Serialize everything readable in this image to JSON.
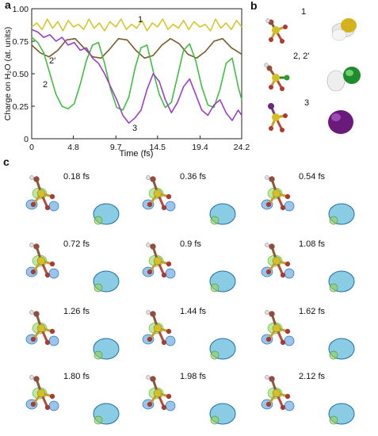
{
  "panels": {
    "a": "a",
    "b": "b",
    "c": "c"
  },
  "chart_data": {
    "type": "line",
    "title": "",
    "xlabel": "Time (fs)",
    "ylabel": "Charge on H₂O (at. units)",
    "xlim": [
      0,
      24.2
    ],
    "ylim": [
      0,
      1.0
    ],
    "xticks": [
      "0",
      "4.8",
      "9.7",
      "14.5",
      "19.4",
      "24.2"
    ],
    "xtick_values": [
      0,
      4.8,
      9.7,
      14.5,
      19.4,
      24.2
    ],
    "yticks": [
      "0",
      "0.25",
      "0.50",
      "0.75",
      "1.00"
    ],
    "ytick_values": [
      0,
      0.25,
      0.5,
      0.75,
      1.0
    ],
    "grid": false,
    "series": [
      {
        "name": "1",
        "color": "#d8c52e",
        "x": [
          0,
          0.6,
          1.2,
          1.8,
          2.4,
          3.0,
          3.6,
          4.2,
          4.8,
          5.4,
          6.0,
          6.6,
          7.2,
          7.8,
          8.4,
          9.0,
          9.7,
          10.3,
          10.9,
          11.5,
          12.1,
          12.7,
          13.3,
          13.9,
          14.5,
          15.1,
          15.7,
          16.3,
          16.9,
          17.5,
          18.1,
          18.7,
          19.4,
          20.0,
          20.6,
          21.2,
          21.8,
          22.4,
          23.0,
          23.6,
          24.2
        ],
        "values": [
          0.86,
          0.89,
          0.84,
          0.92,
          0.85,
          0.9,
          0.83,
          0.91,
          0.86,
          0.88,
          0.84,
          0.92,
          0.85,
          0.89,
          0.83,
          0.9,
          0.86,
          0.92,
          0.84,
          0.88,
          0.85,
          0.91,
          0.83,
          0.89,
          0.86,
          0.92,
          0.84,
          0.88,
          0.85,
          0.91,
          0.84,
          0.9,
          0.86,
          0.88,
          0.83,
          0.92,
          0.85,
          0.89,
          0.84,
          0.91,
          0.86
        ]
      },
      {
        "name": "2'",
        "color": "#7a5a2a",
        "x": [
          0,
          1,
          2,
          3,
          4,
          5,
          6,
          7,
          8,
          9,
          10,
          11,
          12,
          13,
          14,
          15,
          16,
          17,
          18,
          19,
          20,
          21,
          22,
          23,
          24.2
        ],
        "values": [
          0.72,
          0.66,
          0.63,
          0.68,
          0.76,
          0.77,
          0.7,
          0.63,
          0.62,
          0.69,
          0.77,
          0.76,
          0.68,
          0.62,
          0.64,
          0.72,
          0.77,
          0.73,
          0.65,
          0.62,
          0.67,
          0.75,
          0.77,
          0.7,
          0.65
        ]
      },
      {
        "name": "2",
        "color": "#3fbf3f",
        "x": [
          0,
          0.7,
          1.4,
          2.1,
          2.8,
          3.5,
          4.2,
          4.9,
          5.6,
          6.3,
          7.0,
          7.7,
          8.4,
          9.1,
          9.8,
          10.5,
          11.2,
          11.9,
          12.6,
          13.3,
          14.0,
          14.7,
          15.4,
          16.1,
          16.8,
          17.5,
          18.2,
          18.9,
          19.6,
          20.3,
          21.0,
          21.7,
          22.4,
          23.1,
          23.8,
          24.2
        ],
        "values": [
          0.78,
          0.74,
          0.66,
          0.5,
          0.34,
          0.25,
          0.23,
          0.27,
          0.42,
          0.6,
          0.72,
          0.74,
          0.58,
          0.38,
          0.24,
          0.22,
          0.32,
          0.54,
          0.7,
          0.72,
          0.52,
          0.34,
          0.24,
          0.28,
          0.48,
          0.68,
          0.73,
          0.6,
          0.4,
          0.26,
          0.24,
          0.38,
          0.58,
          0.62,
          0.4,
          0.3
        ]
      },
      {
        "name": "3",
        "color": "#9a3fc8",
        "x": [
          0,
          0.7,
          1.4,
          2.1,
          2.8,
          3.5,
          4.2,
          4.9,
          5.6,
          6.3,
          7.0,
          7.7,
          8.4,
          9.1,
          9.8,
          10.5,
          11.2,
          11.9,
          12.6,
          13.3,
          14.0,
          14.7,
          15.4,
          16.1,
          16.8,
          17.5,
          18.2,
          18.9,
          19.6,
          20.3,
          21.0,
          21.7,
          22.4,
          23.1,
          23.8,
          24.2
        ],
        "values": [
          0.84,
          0.82,
          0.78,
          0.8,
          0.75,
          0.78,
          0.72,
          0.74,
          0.68,
          0.7,
          0.62,
          0.58,
          0.5,
          0.4,
          0.3,
          0.18,
          0.12,
          0.16,
          0.22,
          0.38,
          0.5,
          0.44,
          0.3,
          0.2,
          0.28,
          0.4,
          0.46,
          0.34,
          0.22,
          0.18,
          0.26,
          0.3,
          0.2,
          0.14,
          0.22,
          0.18
        ]
      }
    ],
    "curve_labels": [
      "1",
      "2'",
      "2",
      "3"
    ]
  },
  "panel_b_labels": [
    "1",
    "2, 2'",
    "3"
  ],
  "panel_c_times": [
    "0.18 fs",
    "0.36 fs",
    "0.54 fs",
    "0.72 fs",
    "0.9 fs",
    "1.08 fs",
    "1.26 fs",
    "1.44 fs",
    "1.62 fs",
    "1.80 fs",
    "1.98 fs",
    "2.12 fs"
  ]
}
